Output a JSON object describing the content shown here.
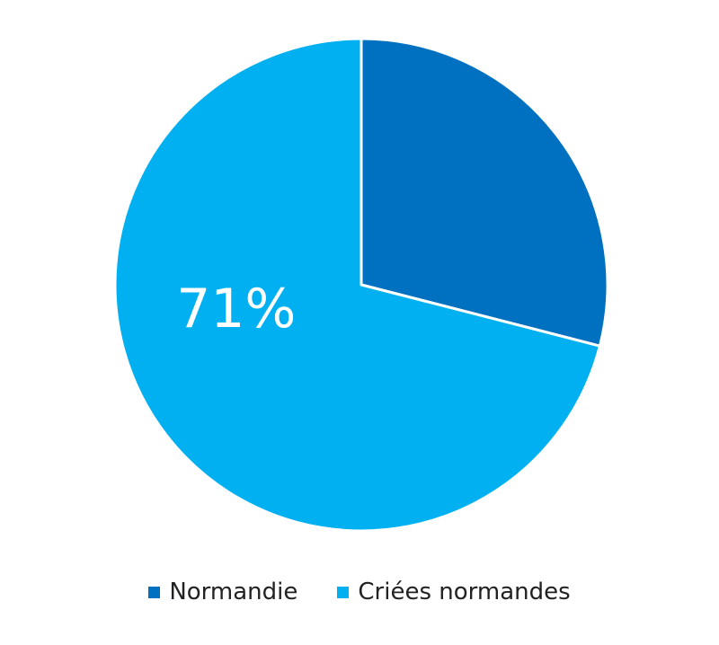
{
  "chart_data": {
    "type": "pie",
    "start_angle_deg": 0,
    "direction": "clockwise",
    "slices": [
      {
        "label": "Normandie",
        "value": 29,
        "color": "#0070c0",
        "data_label": ""
      },
      {
        "label": "Criées normandes",
        "value": 71,
        "color": "#00b0f0",
        "data_label": "71%"
      }
    ],
    "legend": {
      "position": "bottom",
      "items": [
        "Normandie",
        "Criées normandes"
      ]
    },
    "slice_border_color": "#ffffff",
    "data_label_color": "#ffffff"
  }
}
